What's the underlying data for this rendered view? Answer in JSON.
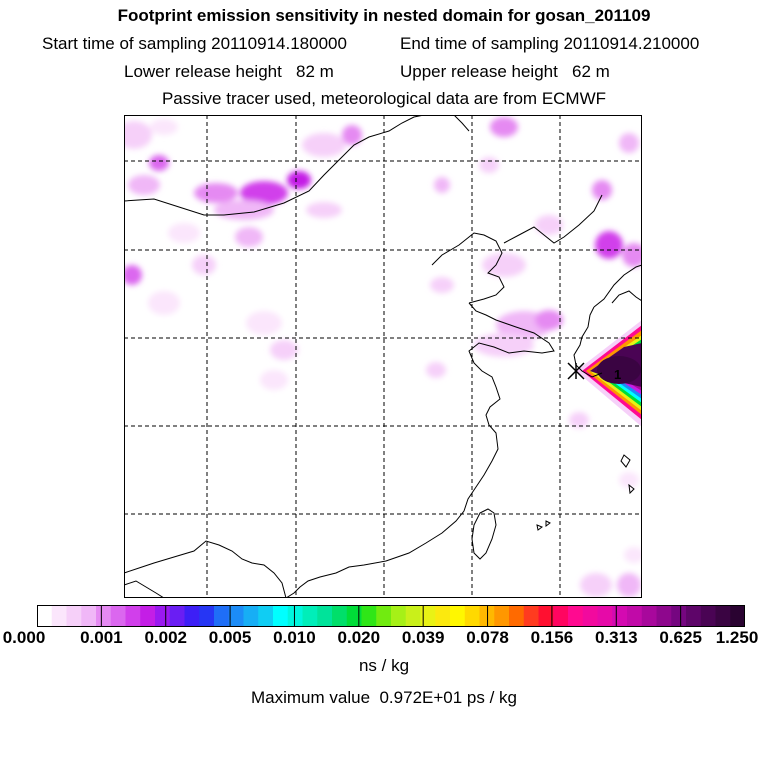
{
  "header": {
    "title": "Footprint emission sensitivity in nested domain for gosan_201109",
    "start_label": "Start time of sampling 20110914.180000",
    "end_label": "End time of sampling 20110914.210000",
    "lower_label": "Lower release height   82 m",
    "upper_label": "Upper release height   62 m",
    "info": "Passive tracer used, meteorological data are from ECMWF"
  },
  "map": {
    "receptor_label": "1",
    "colors": {
      "coast": "#000000",
      "grid": "#000000",
      "plume_core": "#3a0a3a"
    }
  },
  "colorbar": {
    "ticks": [
      "0.000",
      "0.001",
      "0.002",
      "0.005",
      "0.010",
      "0.020",
      "0.039",
      "0.078",
      "0.156",
      "0.313",
      "0.625",
      "1.250"
    ],
    "colors": [
      "#ffffff",
      "#fbe6fc",
      "#f6d0f9",
      "#f0b7f7",
      "#e58af2",
      "#db67ef",
      "#d13feb",
      "#c41ee6",
      "#9b19f0",
      "#6a1ef3",
      "#3d1ff6",
      "#2636f4",
      "#1f6ef7",
      "#1c8cf7",
      "#17aef5",
      "#10cdf3",
      "#00ffff",
      "#00f6de",
      "#00eeb9",
      "#00e39a",
      "#00df6a",
      "#00dd38",
      "#2fe617",
      "#71eb10",
      "#a6f017",
      "#c9f01a",
      "#e9f215",
      "#fbe90f",
      "#fff700",
      "#ffd900",
      "#ffb800",
      "#ff9700",
      "#ff6a00",
      "#ff3b1f",
      "#ff1030",
      "#ff0560",
      "#ff0a90",
      "#f20a9e",
      "#e60aa8",
      "#d40ab1",
      "#c10aa8",
      "#a8089c",
      "#8e078d",
      "#750680",
      "#5e0569",
      "#4a0454",
      "#3a0442",
      "#2a0331"
    ],
    "units": "ns / kg"
  },
  "footer": {
    "max_value": "Maximum value  0.972E+01 ps / kg"
  }
}
